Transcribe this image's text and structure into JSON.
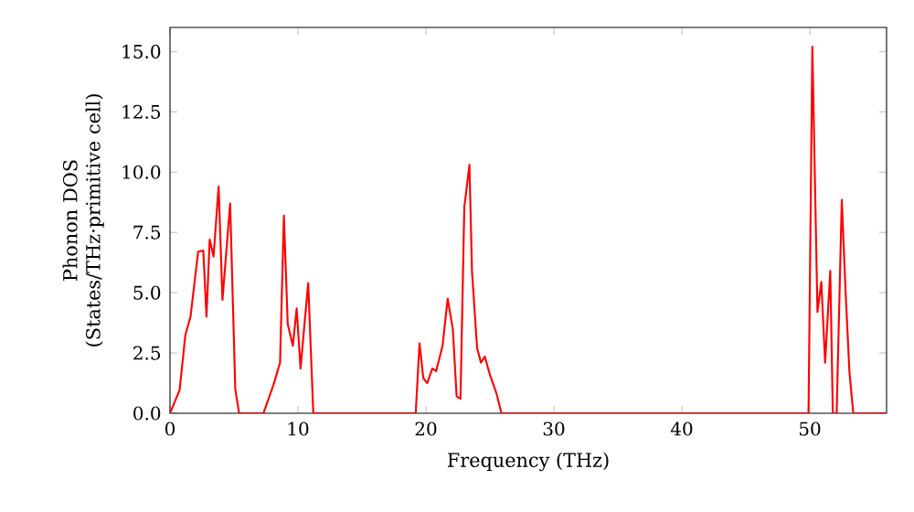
{
  "chart_data": {
    "type": "line",
    "xlabel": "Frequency (THz)",
    "ylabel": "Phonon DOS (States/THz·primitive cell)",
    "xlim": [
      0,
      56
    ],
    "ylim": [
      0,
      16
    ],
    "xticks": [
      0,
      10,
      20,
      30,
      40,
      50
    ],
    "yticks": [
      {
        "value": 0,
        "label": "0.0"
      },
      {
        "value": 2.5,
        "label": "2.5"
      },
      {
        "value": 5,
        "label": "5.0"
      },
      {
        "value": 7.5,
        "label": "7.5"
      },
      {
        "value": 10,
        "label": "10.0"
      },
      {
        "value": 12.5,
        "label": "12.5"
      },
      {
        "value": 15,
        "label": "15.0"
      }
    ],
    "grid": false,
    "series": [
      {
        "color": "#ff0000",
        "x": [
          0,
          0.75,
          1.2,
          1.6,
          2.2,
          2.6,
          2.85,
          3.1,
          3.4,
          3.8,
          4.1,
          4.7,
          5.1,
          5.4,
          7.3,
          8.1,
          8.6,
          8.9,
          9.2,
          9.6,
          9.9,
          10.2,
          10.8,
          11.2,
          19.2,
          19.5,
          19.8,
          20.1,
          20.5,
          20.8,
          21.3,
          21.7,
          22.1,
          22.4,
          22.7,
          23.0,
          23.4,
          23.6,
          24.0,
          24.3,
          24.6,
          25.0,
          25.5,
          25.9,
          49.9,
          50.2,
          50.6,
          50.9,
          51.2,
          51.6,
          51.8,
          52.1,
          52.5,
          52.8,
          53.1,
          53.4,
          56
        ],
        "values": [
          0,
          0.96,
          3.25,
          4.0,
          6.7,
          6.75,
          4.0,
          7.2,
          6.5,
          9.4,
          4.7,
          8.7,
          1.0,
          0,
          0,
          1.2,
          2.1,
          8.2,
          3.7,
          2.8,
          4.35,
          1.85,
          5.4,
          0,
          0,
          2.9,
          1.45,
          1.25,
          1.85,
          1.75,
          2.8,
          4.75,
          3.5,
          0.7,
          0.6,
          8.55,
          10.3,
          5.9,
          2.7,
          2.1,
          2.35,
          1.6,
          0.85,
          0,
          0,
          15.2,
          4.2,
          5.45,
          2.1,
          5.9,
          0,
          0,
          8.85,
          5.0,
          1.7,
          0,
          0
        ]
      }
    ]
  }
}
